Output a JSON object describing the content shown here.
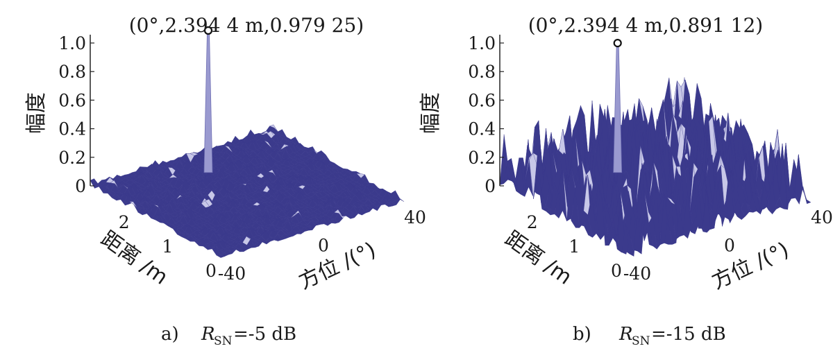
{
  "chart_data": [
    {
      "type": "surface",
      "panel": "a",
      "caption": {
        "prefix": "a)",
        "symbol": "R",
        "subscript": "SN",
        "value": "=-5 dB"
      },
      "peak_annotation": "(0°,2.394 4 m,0.979 25)",
      "peak": {
        "azimuth": 0,
        "range": 2.3944,
        "amplitude": 0.97925
      },
      "noise_floor_max": 0.05,
      "zlabel": "幅度",
      "ylabel": "距离 /m",
      "xlabel": "方位 /(°)",
      "z_ticks": [
        "0",
        "0.2",
        "0.4",
        "0.6",
        "0.8",
        "1.0"
      ],
      "y_ticks": [
        "0",
        "1",
        "2"
      ],
      "x_ticks": [
        "-40",
        "0",
        "40"
      ],
      "zlim": [
        0,
        1.0
      ],
      "xlim": [
        -40,
        40
      ],
      "ylim": [
        0,
        3
      ],
      "surface_color": "#3b3a8c",
      "spike_color": "#9a9ad0"
    },
    {
      "type": "surface",
      "panel": "b",
      "caption": {
        "prefix": "b)",
        "symbol": "R",
        "subscript": "SN",
        "value": "=-15 dB"
      },
      "peak_annotation": "(0°,2.394 4 m,0.891 12)",
      "peak": {
        "azimuth": 0,
        "range": 2.3944,
        "amplitude": 0.89112
      },
      "noise_floor_max": 0.4,
      "zlabel": "幅度",
      "ylabel": "距离 /m",
      "xlabel": "方位 /(°)",
      "z_ticks": [
        "0",
        "0.2",
        "0.4",
        "0.6",
        "0.8",
        "1.0"
      ],
      "y_ticks": [
        "0",
        "1",
        "2"
      ],
      "x_ticks": [
        "-40",
        "0",
        "40"
      ],
      "zlim": [
        0,
        1.0
      ],
      "xlim": [
        -40,
        40
      ],
      "ylim": [
        0,
        3
      ],
      "surface_color": "#3b3a8c",
      "spike_color": "#9a9ad0"
    }
  ]
}
